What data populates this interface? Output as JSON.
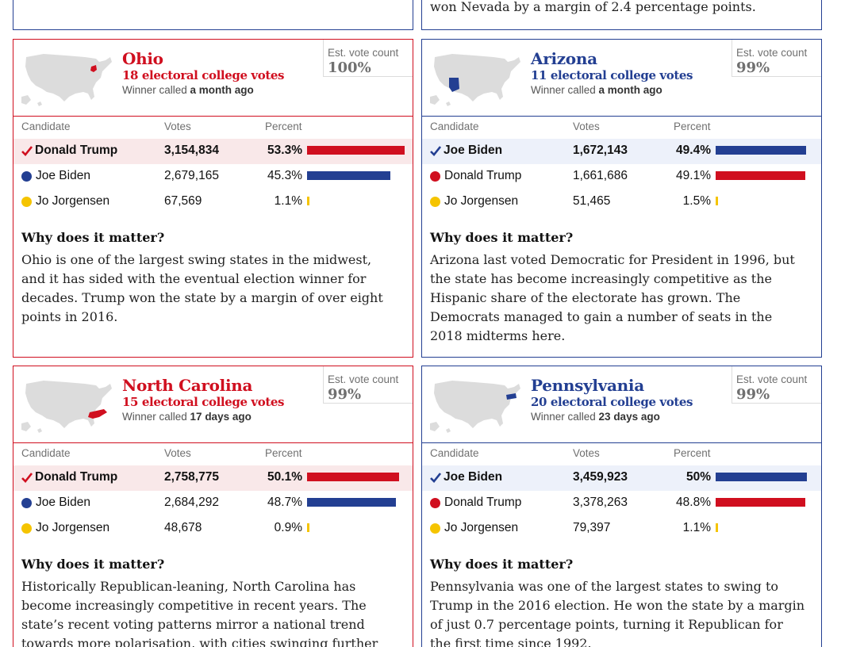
{
  "colors": {
    "rep": "#d00f1f",
    "dem": "#233f92",
    "lib": "#f5c400",
    "rep_bg": "#f9e8e9",
    "dem_bg": "#edf1fa",
    "map_grey": "#dcdcdc"
  },
  "table_headers": {
    "candidate": "Candidate",
    "votes": "Votes",
    "percent": "Percent"
  },
  "why_heading": "Why does it matter?",
  "est_label": "Est. vote count",
  "winner_called_prefix": "Winner called",
  "top_right_card": {
    "text": "won Nevada by a margin of 2.4 percentage points."
  },
  "states": [
    {
      "name": "Ohio",
      "party": "rep",
      "electoral_votes": "18 electoral college votes",
      "called": "a month ago",
      "est_count": "100%",
      "map_icon": "usa-map-ohio-highlighted-icon",
      "candidates": [
        {
          "name": "Donald Trump",
          "party": "rep",
          "votes": "3,154,834",
          "percent": "53.3%",
          "share": 53.3,
          "winner": true
        },
        {
          "name": "Joe Biden",
          "party": "dem",
          "votes": "2,679,165",
          "percent": "45.3%",
          "share": 45.3,
          "winner": false
        },
        {
          "name": "Jo Jorgensen",
          "party": "lib",
          "votes": "67,569",
          "percent": "1.1%",
          "share": 1.1,
          "winner": false
        }
      ],
      "why": "Ohio is one of the largest swing states in the midwest, and it has sided with the eventual election winner for decades. Trump won the state by a margin of over eight points in 2016."
    },
    {
      "name": "Arizona",
      "party": "dem",
      "electoral_votes": "11 electoral college votes",
      "called": "a month ago",
      "est_count": "99%",
      "map_icon": "usa-map-arizona-highlighted-icon",
      "candidates": [
        {
          "name": "Joe Biden",
          "party": "dem",
          "votes": "1,672,143",
          "percent": "49.4%",
          "share": 49.4,
          "winner": true
        },
        {
          "name": "Donald Trump",
          "party": "rep",
          "votes": "1,661,686",
          "percent": "49.1%",
          "share": 49.1,
          "winner": false
        },
        {
          "name": "Jo Jorgensen",
          "party": "lib",
          "votes": "51,465",
          "percent": "1.5%",
          "share": 1.5,
          "winner": false
        }
      ],
      "why": "Arizona last voted Democratic for President in 1996, but the state has become increasingly competitive as the Hispanic share of the electorate has grown. The Democrats managed to gain a number of seats in the 2018 midterms here."
    },
    {
      "name": "North Carolina",
      "party": "rep",
      "electoral_votes": "15 electoral college votes",
      "called": "17 days ago",
      "est_count": "99%",
      "map_icon": "usa-map-north-carolina-highlighted-icon",
      "candidates": [
        {
          "name": "Donald Trump",
          "party": "rep",
          "votes": "2,758,775",
          "percent": "50.1%",
          "share": 50.1,
          "winner": true
        },
        {
          "name": "Joe Biden",
          "party": "dem",
          "votes": "2,684,292",
          "percent": "48.7%",
          "share": 48.7,
          "winner": false
        },
        {
          "name": "Jo Jorgensen",
          "party": "lib",
          "votes": "48,678",
          "percent": "0.9%",
          "share": 0.9,
          "winner": false
        }
      ],
      "why": "Historically Republican-leaning, North Carolina has become increasingly competitive in recent years. The state’s recent voting patterns mirror a national trend towards more polarisation, with cities swinging further"
    },
    {
      "name": "Pennsylvania",
      "party": "dem",
      "electoral_votes": "20 electoral college votes",
      "called": "23 days ago",
      "est_count": "99%",
      "map_icon": "usa-map-pennsylvania-highlighted-icon",
      "candidates": [
        {
          "name": "Joe Biden",
          "party": "dem",
          "votes": "3,459,923",
          "percent": "50%",
          "share": 50.0,
          "winner": true
        },
        {
          "name": "Donald Trump",
          "party": "rep",
          "votes": "3,378,263",
          "percent": "48.8%",
          "share": 48.8,
          "winner": false
        },
        {
          "name": "Jo Jorgensen",
          "party": "lib",
          "votes": "79,397",
          "percent": "1.1%",
          "share": 1.1,
          "winner": false
        }
      ],
      "why": "Pennsylvania was one of the largest states to swing to Trump in the 2016 election. He won the state by a margin of just 0.7 percentage points, turning it Republican for the first time since 1992."
    }
  ]
}
